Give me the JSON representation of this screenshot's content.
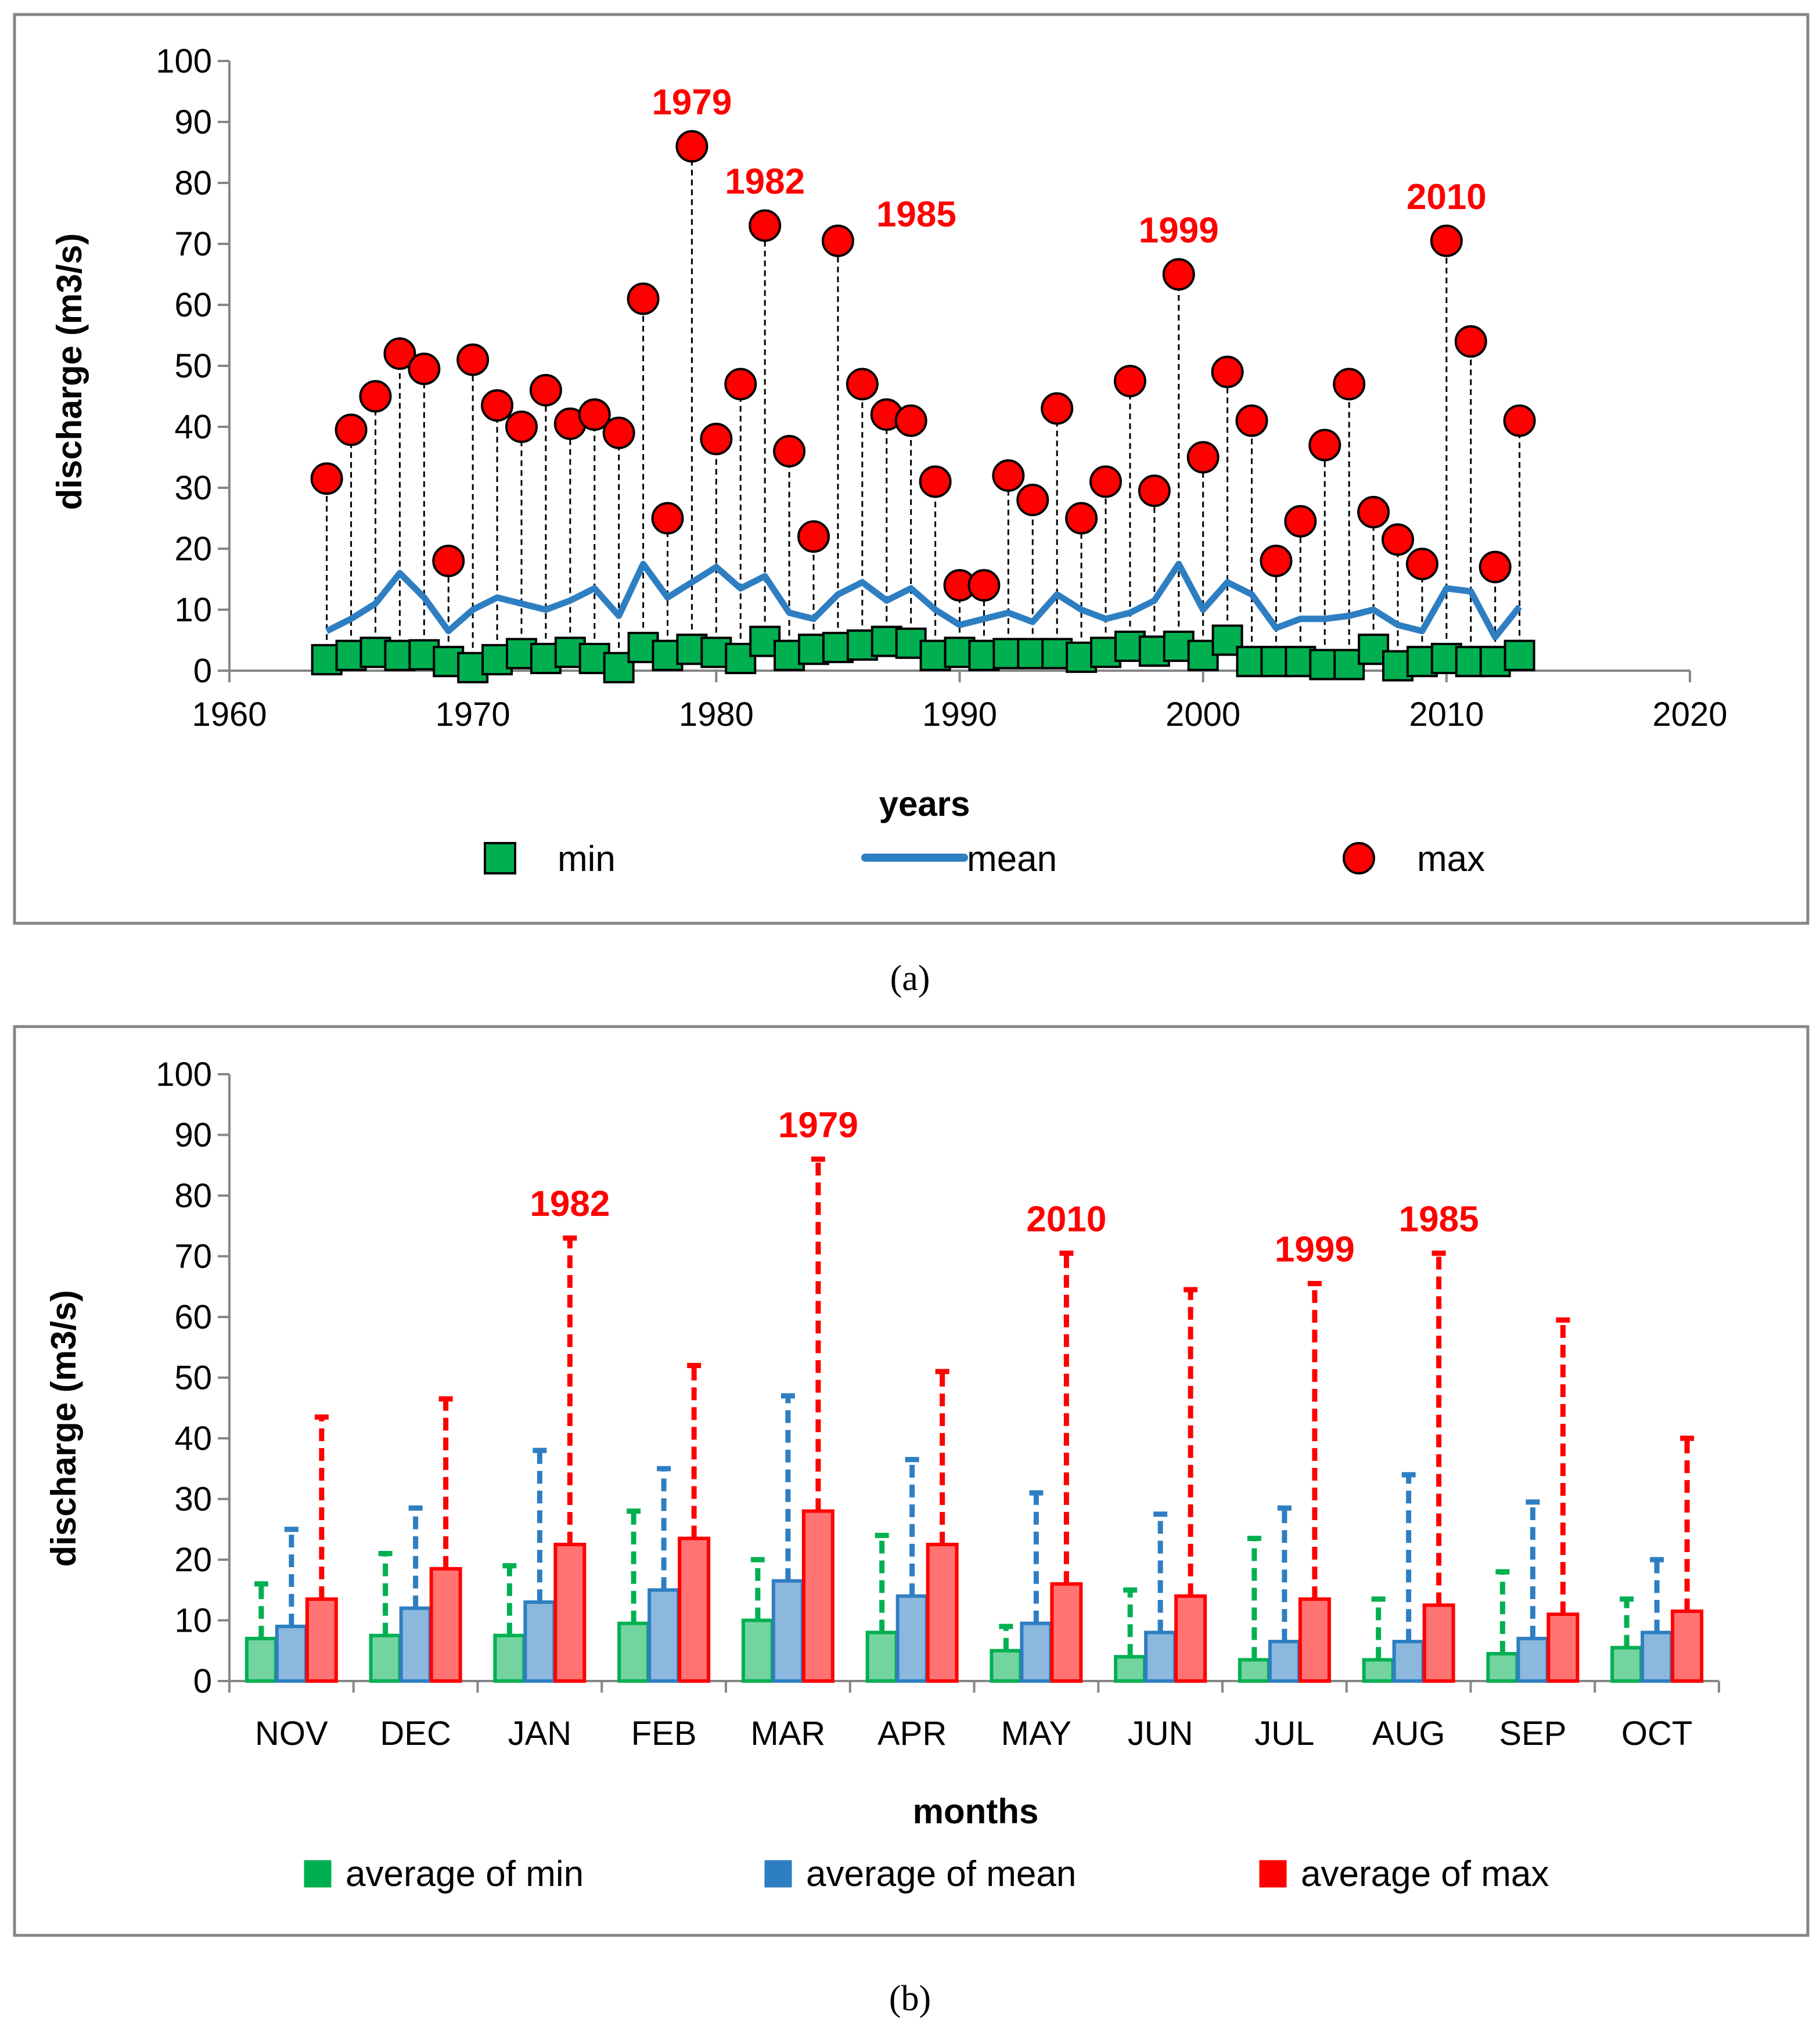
{
  "chart_data": [
    {
      "type": "scatter",
      "panel_label": "(a)",
      "xlabel": "years",
      "ylabel": "discharge (m3/s)",
      "xlim": [
        1960,
        2020
      ],
      "ylim": [
        0,
        100
      ],
      "xticks": [
        "1960",
        "1970",
        "1980",
        "1990",
        "2000",
        "2010",
        "2020"
      ],
      "yticks": [
        "0",
        "10",
        "20",
        "30",
        "40",
        "50",
        "60",
        "70",
        "80",
        "90",
        "100"
      ],
      "x": [
        1964,
        1965,
        1966,
        1967,
        1968,
        1969,
        1970,
        1971,
        1972,
        1973,
        1974,
        1975,
        1976,
        1977,
        1978,
        1979,
        1980,
        1981,
        1982,
        1983,
        1984,
        1985,
        1986,
        1987,
        1988,
        1989,
        1990,
        1991,
        1992,
        1993,
        1994,
        1995,
        1996,
        1997,
        1998,
        1999,
        2000,
        2001,
        2002,
        2003,
        2004,
        2005,
        2006,
        2007,
        2008,
        2009,
        2010,
        2011,
        2012,
        2013
      ],
      "series": [
        {
          "name": "min",
          "marker": "square",
          "color": "#00b050",
          "values": [
            1.8,
            2.5,
            3.0,
            2.5,
            2.6,
            1.5,
            0.5,
            1.8,
            2.8,
            2.0,
            3.0,
            2.0,
            0.5,
            3.8,
            2.5,
            3.5,
            3.0,
            2.0,
            4.8,
            2.5,
            3.5,
            3.8,
            4.2,
            4.8,
            4.5,
            2.5,
            3.0,
            2.5,
            2.8,
            2.8,
            2.8,
            2.2,
            3.0,
            4.0,
            3.2,
            4.0,
            2.5,
            5.0,
            1.5,
            1.5,
            1.5,
            1.0,
            1.0,
            3.5,
            0.8,
            1.5,
            2.0,
            1.5,
            1.5,
            2.5
          ]
        },
        {
          "name": "mean",
          "marker": "line",
          "color": "#2e7ec2",
          "values": [
            6.5,
            8.5,
            11,
            16,
            12,
            6.5,
            10,
            12,
            11,
            10,
            11.5,
            13.5,
            9,
            17.5,
            12,
            14.5,
            17,
            13.5,
            15.5,
            9.5,
            8.5,
            12.5,
            14.5,
            11.5,
            13.5,
            10,
            7.5,
            8.5,
            9.5,
            8,
            12.5,
            10,
            8.5,
            9.5,
            11.5,
            17.5,
            10,
            14.5,
            12.5,
            7,
            8.5,
            8.5,
            9,
            10,
            7.5,
            6.5,
            13.5,
            13,
            5.5,
            10.5
          ]
        },
        {
          "name": "max",
          "marker": "circle",
          "color": "#ff0000",
          "values": [
            31.5,
            39.5,
            45,
            52,
            49.5,
            18,
            51,
            43.5,
            40,
            46,
            40.5,
            42,
            39,
            61,
            25,
            86,
            38,
            47,
            73,
            36,
            22,
            70.5,
            47,
            42,
            41,
            31,
            14,
            14,
            32,
            28,
            43,
            25,
            31,
            47.5,
            29.5,
            65,
            35,
            49,
            41,
            18,
            24.5,
            37,
            47,
            26,
            21.5,
            17.5,
            70.5,
            54,
            17,
            41
          ]
        }
      ],
      "annotations": [
        {
          "text": "1979",
          "x": 1979
        },
        {
          "text": "1982",
          "x": 1982
        },
        {
          "text": "1985",
          "x": 1985
        },
        {
          "text": "1999",
          "x": 1999
        },
        {
          "text": "2010",
          "x": 2010
        }
      ]
    },
    {
      "type": "bar",
      "panel_label": "(b)",
      "xlabel": "months",
      "ylabel": "discharge (m3/s)",
      "ylim": [
        0,
        100
      ],
      "yticks": [
        "0",
        "10",
        "20",
        "30",
        "40",
        "50",
        "60",
        "70",
        "80",
        "90",
        "100"
      ],
      "categories": [
        "NOV",
        "DEC",
        "JAN",
        "FEB",
        "MAR",
        "APR",
        "MAY",
        "JUN",
        "JUL",
        "AUG",
        "SEP",
        "OCT"
      ],
      "series": [
        {
          "name": "average of min",
          "color": "#00b050",
          "values": [
            7,
            7.5,
            7.5,
            9.5,
            10,
            8,
            5,
            4,
            3.5,
            3.5,
            4.5,
            5.5
          ],
          "error_max": [
            16,
            21,
            19,
            28,
            20,
            24,
            9,
            15,
            23.5,
            13.5,
            18,
            13.5
          ]
        },
        {
          "name": "average of mean",
          "color": "#2e7ec2",
          "values": [
            9,
            12,
            13,
            15,
            16.5,
            14,
            9.5,
            8,
            6.5,
            6.5,
            7,
            8
          ],
          "error_max": [
            25,
            28.5,
            38,
            35,
            47,
            36.5,
            31,
            27.5,
            28.5,
            34,
            29.5,
            20
          ]
        },
        {
          "name": "average of max",
          "color": "#ff0000",
          "values": [
            13.5,
            18.5,
            22.5,
            23.5,
            28,
            22.5,
            16,
            14,
            13.5,
            12.5,
            11,
            11.5
          ],
          "error_max": [
            43.5,
            46.5,
            73,
            52,
            86,
            51,
            70.5,
            64.5,
            65.5,
            70.5,
            59.5,
            40
          ]
        }
      ],
      "annotations": [
        {
          "text": "1982",
          "category": "JAN"
        },
        {
          "text": "1979",
          "category": "MAR"
        },
        {
          "text": "2010",
          "category": "MAY"
        },
        {
          "text": "1999",
          "category": "JUL"
        },
        {
          "text": "1985",
          "category": "AUG"
        }
      ]
    }
  ],
  "colors": {
    "min": "#00b050",
    "mean": "#2e7ec2",
    "max": "#ff0000",
    "frame": "#868686",
    "annotation": "#ff0000"
  }
}
